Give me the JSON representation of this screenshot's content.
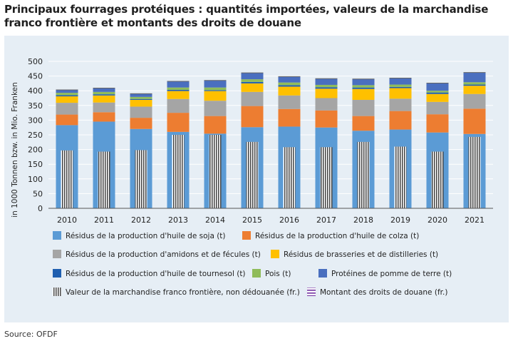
{
  "chart_data": {
    "type": "bar",
    "stacked": true,
    "title": "Principaux fourrages protéiques : quantités importées, valeurs de la marchandise franco frontière et montants des droits de douane",
    "ylabel": "in 1000 Tonnen bzw. in Mio. Franken",
    "xlabel": "",
    "ylim": [
      0,
      500
    ],
    "yticks": [
      0,
      50,
      100,
      150,
      200,
      250,
      300,
      350,
      400,
      450,
      500
    ],
    "categories": [
      "2010",
      "2011",
      "2012",
      "2013",
      "2014",
      "2015",
      "2016",
      "2017",
      "2018",
      "2019",
      "2020",
      "2021"
    ],
    "series": [
      {
        "name": "Résidus de la production d'huile de soja (t)",
        "color": "#5b9bd5",
        "values": [
          283,
          295,
          270,
          260,
          254,
          276,
          278,
          275,
          264,
          268,
          258,
          253
        ]
      },
      {
        "name": "Résidus de la production d'huile de colza (t)",
        "color": "#ed7d31",
        "values": [
          36,
          32,
          38,
          65,
          60,
          72,
          60,
          58,
          50,
          63,
          62,
          86
        ]
      },
      {
        "name": "Résidus de la production d'amidons et de fécules (t)",
        "color": "#a5a5a5",
        "values": [
          40,
          33,
          38,
          47,
          52,
          48,
          46,
          42,
          55,
          42,
          42,
          50
        ]
      },
      {
        "name": "Résidus de brasseries et de distilleries (t)",
        "color": "#ffc000",
        "values": [
          22,
          24,
          23,
          27,
          33,
          29,
          30,
          32,
          37,
          36,
          27,
          28
        ]
      },
      {
        "name": "Résidus de la production d'huile de tournesol (t)",
        "color": "#1f5fb0",
        "values": [
          4,
          4,
          3,
          4,
          3,
          5,
          5,
          5,
          5,
          4,
          5,
          4
        ]
      },
      {
        "name": "Pois (t)",
        "color": "#8fbc5a",
        "values": [
          8,
          8,
          7,
          8,
          9,
          9,
          9,
          8,
          8,
          8,
          6,
          8
        ]
      },
      {
        "name": "Protéines de pomme de terre (t)",
        "color": "#4a6fbf",
        "values": [
          10,
          13,
          11,
          21,
          24,
          22,
          20,
          21,
          21,
          22,
          26,
          33
        ]
      }
    ],
    "overlay_series": [
      {
        "name": "Valeur de la marchandise franco frontière, non dédouanée (fr.)",
        "style": "vertical-hatch",
        "values": [
          197,
          193,
          198,
          250,
          250,
          226,
          208,
          208,
          226,
          210,
          193,
          243
        ]
      },
      {
        "name": "Montant des droits de douane (fr.)",
        "style": "horizontal-hatch",
        "color": "#7030a0",
        "values": [
          0,
          0,
          0,
          0,
          0,
          0,
          0,
          0,
          0,
          0,
          0,
          0
        ]
      }
    ]
  },
  "source": "Source: OFDF",
  "colors": {
    "panel": "#e6eef5",
    "grid": "#ffffff",
    "axis": "#333333"
  }
}
